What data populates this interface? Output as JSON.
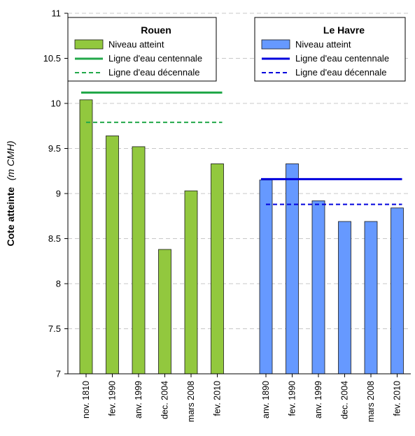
{
  "chart_data": {
    "type": "bar",
    "ylabel": "Cote atteinte",
    "ylabel_unit": "(m CMH)",
    "ylim": [
      7,
      11
    ],
    "yticks": [
      "7",
      "7.5",
      "8",
      "8.5",
      "9",
      "9.5",
      "10",
      "10.5",
      "11"
    ],
    "grid": "horizontal dashed",
    "groups": [
      {
        "name": "Rouen",
        "color": "#92c83e",
        "line_color": "#22a84a",
        "categories": [
          "nov. 1810",
          "fev. 1990",
          "anv. 1999",
          "dec. 2004",
          "mars 2008",
          "fev. 2010"
        ],
        "values": [
          10.04,
          9.64,
          9.52,
          8.38,
          9.03,
          9.33
        ],
        "centennial": 10.12,
        "decennial": 9.79,
        "legend": {
          "title": "Rouen",
          "bar_label": "Niveau atteint",
          "centennial_label": "Ligne d'eau centennale",
          "decennial_label": "Ligne d'eau décennale"
        }
      },
      {
        "name": "Le Havre",
        "color": "#6699ff",
        "line_color": "#0000dd",
        "categories": [
          "anv. 1890",
          "fev. 1990",
          "anv. 1999",
          "dec. 2004",
          "mars 2008",
          "fev. 2010"
        ],
        "values": [
          9.15,
          9.33,
          8.92,
          8.69,
          8.69,
          8.84
        ],
        "centennial": 9.16,
        "decennial": 8.88,
        "legend": {
          "title": "Le Havre",
          "bar_label": "Niveau atteint",
          "centennial_label": "Ligne d'eau centennale",
          "decennial_label": "Ligne d'eau décennale"
        }
      }
    ]
  }
}
